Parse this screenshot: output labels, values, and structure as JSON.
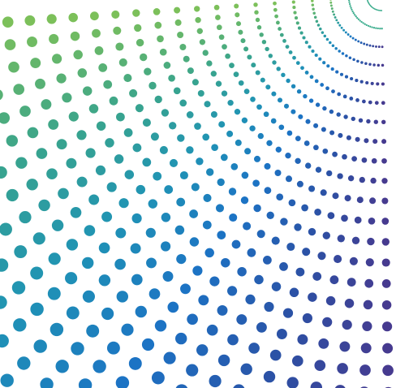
{
  "artwork": {
    "kind": "radial-halftone-dot-burst",
    "origin_corner": "top-right",
    "palette": {
      "near_origin": "#3fae8f",
      "top": "#7cc05a",
      "mid_green": "#3aa58c",
      "teal": "#1f93b5",
      "blue": "#1c73c4",
      "indigo": "#2b52a6",
      "violet": "#463a8f"
    },
    "background_color": "#ffffff"
  }
}
